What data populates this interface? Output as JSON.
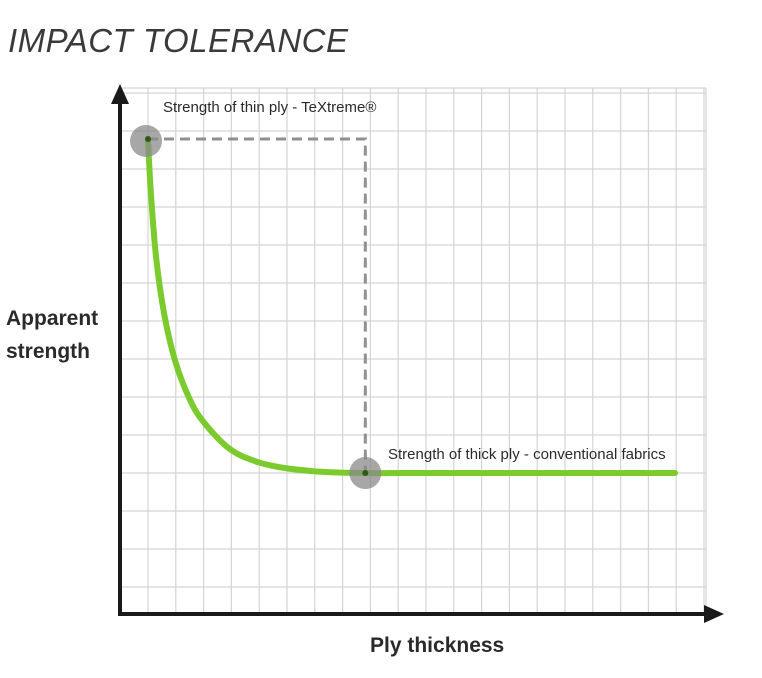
{
  "chart_data": {
    "type": "line",
    "title": "IMPACT TOLERANCE",
    "xlabel": "Ply thickness",
    "ylabel": "Apparent strength",
    "xlim": [
      0,
      20
    ],
    "ylim": [
      0,
      10
    ],
    "grid": true,
    "series": [
      {
        "color": "#7ccb2e",
        "x": [
          0,
          0.1,
          0.3,
          0.6,
          1.0,
          1.5,
          2.0,
          3.0,
          4.0,
          5.0,
          6.0,
          7.0,
          8.0,
          9.0,
          10.0,
          12.0,
          14.0,
          16.0,
          18.0,
          19.4
        ],
        "y": [
          9.2,
          8.2,
          6.9,
          5.8,
          4.9,
          4.2,
          3.75,
          3.2,
          2.95,
          2.83,
          2.77,
          2.74,
          2.73,
          2.73,
          2.73,
          2.73,
          2.73,
          2.73,
          2.73,
          2.73
        ]
      }
    ],
    "annotations": [
      {
        "text": "Strength of thin ply - TeXtreme®",
        "x": 0,
        "y": 9.2
      },
      {
        "text": "Strength of thick ply - conventional fabrics",
        "x": 8,
        "y": 2.73
      }
    ]
  },
  "colors": {
    "curve": "#7ccb2e",
    "marker": "#8a8a8a",
    "dashed": "#909090",
    "grid": "#d4d4d4",
    "axis": "#1a1a1a"
  }
}
